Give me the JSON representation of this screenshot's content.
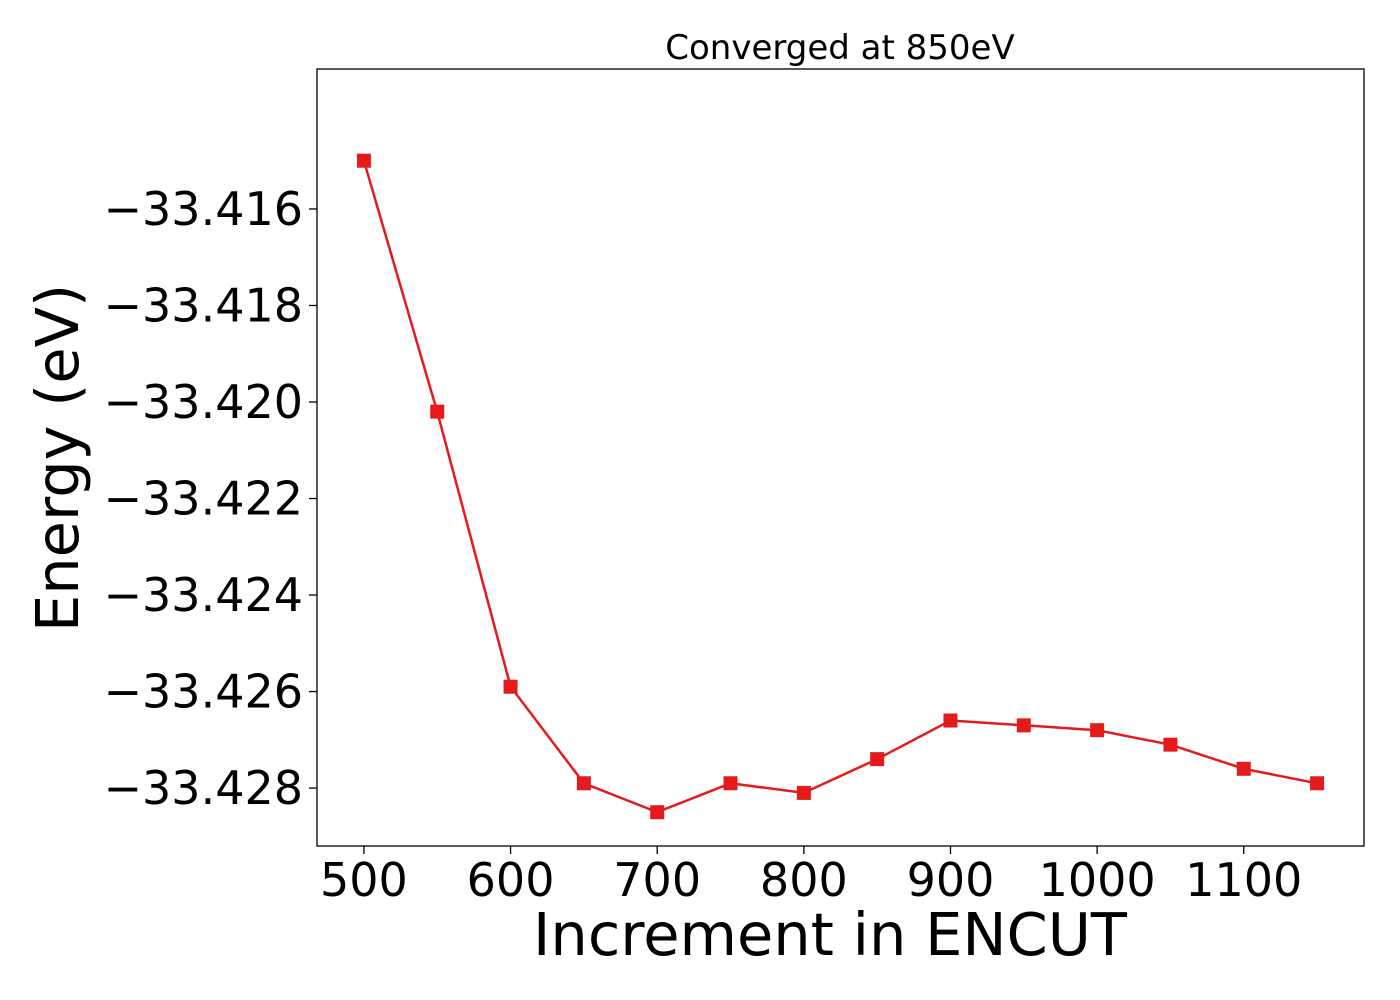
{
  "chart_data": {
    "type": "line",
    "title": "Converged at 850eV",
    "xlabel": "Increment in ENCUT",
    "ylabel": "Energy (eV)",
    "xlim": [
      468,
      1182
    ],
    "ylim": [
      -33.4292,
      -33.4131
    ],
    "xticks": [
      500,
      600,
      700,
      800,
      900,
      1000,
      1100
    ],
    "xtick_labels": [
      "500",
      "600",
      "700",
      "800",
      "900",
      "1000",
      "1100"
    ],
    "yticks": [
      -33.416,
      -33.418,
      -33.42,
      -33.422,
      -33.424,
      -33.426,
      -33.428
    ],
    "ytick_labels": [
      "−33.416",
      "−33.418",
      "−33.420",
      "−33.422",
      "−33.424",
      "−33.426",
      "−33.428"
    ],
    "grid": false,
    "series": [
      {
        "color": "#e41a1c",
        "marker": "square",
        "x": [
          500,
          550,
          600,
          650,
          700,
          750,
          800,
          850,
          900,
          950,
          1000,
          1050,
          1100,
          1150
        ],
        "y": [
          -33.415,
          -33.4202,
          -33.4259,
          -33.4279,
          -33.4285,
          -33.4279,
          -33.4281,
          -33.4274,
          -33.4266,
          -33.4267,
          -33.4268,
          -33.4271,
          -33.4276,
          -33.4279
        ]
      }
    ]
  }
}
